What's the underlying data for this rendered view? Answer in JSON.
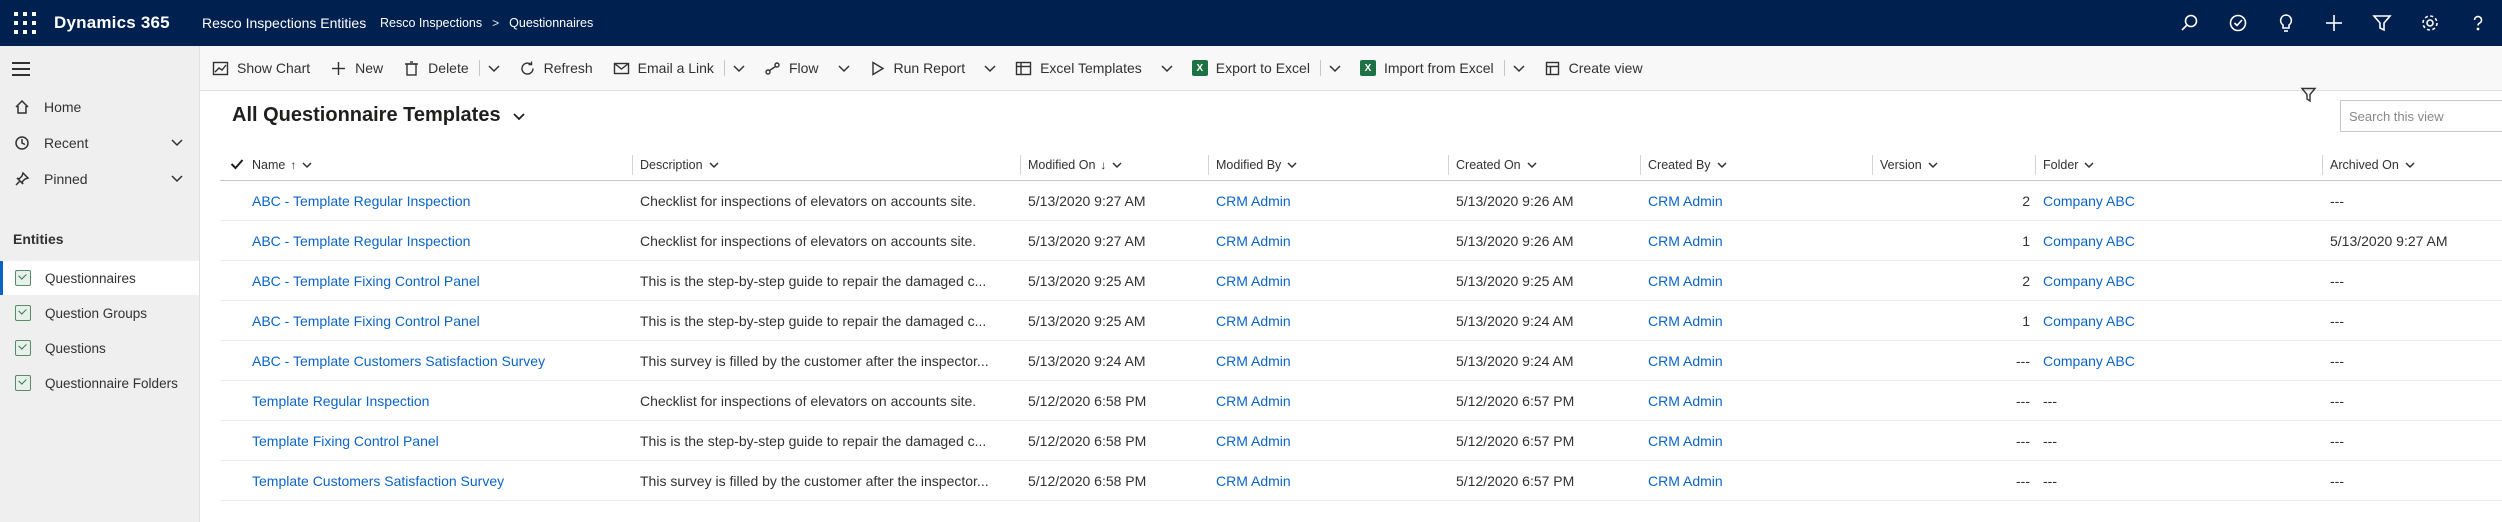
{
  "topbar": {
    "brand": "Dynamics 365",
    "app": "Resco Inspections Entities",
    "breadcrumb": [
      "Resco Inspections",
      "Questionnaires"
    ],
    "breadcrumb_sep": ">"
  },
  "sidebar": {
    "nav": [
      {
        "label": "Home",
        "icon": "home-icon"
      },
      {
        "label": "Recent",
        "icon": "clock-icon"
      },
      {
        "label": "Pinned",
        "icon": "pin-icon"
      }
    ],
    "entities_title": "Entities",
    "entities": [
      {
        "label": "Questionnaires",
        "active": true
      },
      {
        "label": "Question Groups",
        "active": false
      },
      {
        "label": "Questions",
        "active": false
      },
      {
        "label": "Questionnaire Folders",
        "active": false
      }
    ]
  },
  "commands": {
    "show_chart": "Show Chart",
    "new": "New",
    "delete": "Delete",
    "refresh": "Refresh",
    "email_link": "Email a Link",
    "flow": "Flow",
    "run_report": "Run Report",
    "excel_templates": "Excel Templates",
    "export_excel": "Export to Excel",
    "import_excel": "Import from Excel",
    "create_view": "Create view"
  },
  "view": {
    "title": "All Questionnaire Templates",
    "search_placeholder": "Search this view"
  },
  "grid": {
    "columns": {
      "name": "Name",
      "description": "Description",
      "modified_on": "Modified On",
      "modified_by": "Modified By",
      "created_on": "Created On",
      "created_by": "Created By",
      "version": "Version",
      "folder": "Folder",
      "archived_on": "Archived On"
    },
    "sort_up": "↑",
    "sort_down": "↓",
    "rows": [
      {
        "name": "ABC - Template Regular Inspection",
        "description": "Checklist for inspections of elevators on accounts site.",
        "modified_on": "5/13/2020 9:27 AM",
        "modified_by": "CRM Admin",
        "created_on": "5/13/2020 9:26 AM",
        "created_by": "CRM Admin",
        "version": "2",
        "folder": "Company ABC",
        "archived_on": "---"
      },
      {
        "name": "ABC - Template Regular Inspection",
        "description": "Checklist for inspections of elevators on accounts site.",
        "modified_on": "5/13/2020 9:27 AM",
        "modified_by": "CRM Admin",
        "created_on": "5/13/2020 9:26 AM",
        "created_by": "CRM Admin",
        "version": "1",
        "folder": "Company ABC",
        "archived_on": "5/13/2020 9:27 AM"
      },
      {
        "name": "ABC - Template Fixing Control Panel",
        "description": "This is the step-by-step guide to repair the damaged c...",
        "modified_on": "5/13/2020 9:25 AM",
        "modified_by": "CRM Admin",
        "created_on": "5/13/2020 9:25 AM",
        "created_by": "CRM Admin",
        "version": "2",
        "folder": "Company ABC",
        "archived_on": "---"
      },
      {
        "name": "ABC - Template Fixing Control Panel",
        "description": "This is the step-by-step guide to repair the damaged c...",
        "modified_on": "5/13/2020 9:25 AM",
        "modified_by": "CRM Admin",
        "created_on": "5/13/2020 9:24 AM",
        "created_by": "CRM Admin",
        "version": "1",
        "folder": "Company ABC",
        "archived_on": "---"
      },
      {
        "name": "ABC - Template Customers Satisfaction Survey",
        "description": "This survey is filled by the customer after the inspector...",
        "modified_on": "5/13/2020 9:24 AM",
        "modified_by": "CRM Admin",
        "created_on": "5/13/2020 9:24 AM",
        "created_by": "CRM Admin",
        "version": "---",
        "folder": "Company ABC",
        "archived_on": "---"
      },
      {
        "name": "Template Regular Inspection",
        "description": "Checklist for inspections of elevators on accounts site.",
        "modified_on": "5/12/2020 6:58 PM",
        "modified_by": "CRM Admin",
        "created_on": "5/12/2020 6:57 PM",
        "created_by": "CRM Admin",
        "version": "---",
        "folder": "---",
        "archived_on": "---"
      },
      {
        "name": "Template Fixing Control Panel",
        "description": "This is the step-by-step guide to repair the damaged c...",
        "modified_on": "5/12/2020 6:58 PM",
        "modified_by": "CRM Admin",
        "created_on": "5/12/2020 6:57 PM",
        "created_by": "CRM Admin",
        "version": "---",
        "folder": "---",
        "archived_on": "---"
      },
      {
        "name": "Template Customers Satisfaction Survey",
        "description": "This survey is filled by the customer after the inspector...",
        "modified_on": "5/12/2020 6:58 PM",
        "modified_by": "CRM Admin",
        "created_on": "5/12/2020 6:57 PM",
        "created_by": "CRM Admin",
        "version": "---",
        "folder": "---",
        "archived_on": "---"
      }
    ]
  },
  "colors": {
    "topbar": "#002050",
    "link": "#0b64c8",
    "sidebar": "#efefef",
    "excel": "#1e7145"
  }
}
